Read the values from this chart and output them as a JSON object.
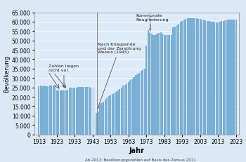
{
  "years": [
    1913,
    1914,
    1915,
    1916,
    1917,
    1918,
    1919,
    1920,
    1921,
    1922,
    1923,
    1924,
    1925,
    1926,
    1927,
    1928,
    1929,
    1930,
    1931,
    1932,
    1933,
    1934,
    1935,
    1936,
    1937,
    1938,
    1939,
    1940,
    1941,
    1942,
    1943,
    1944,
    1945,
    1946,
    1947,
    1948,
    1949,
    1950,
    1951,
    1952,
    1953,
    1954,
    1955,
    1956,
    1957,
    1958,
    1959,
    1960,
    1961,
    1962,
    1963,
    1964,
    1965,
    1966,
    1967,
    1968,
    1969,
    1970,
    1971,
    1972,
    1973,
    1974,
    1975,
    1976,
    1977,
    1978,
    1979,
    1980,
    1981,
    1982,
    1983,
    1984,
    1985,
    1986,
    1987,
    1988,
    1989,
    1990,
    1991,
    1992,
    1993,
    1994,
    1995,
    1996,
    1997,
    1998,
    1999,
    2000,
    2001,
    2002,
    2003,
    2004,
    2005,
    2006,
    2007,
    2008,
    2009,
    2010,
    2011,
    2012,
    2013,
    2014,
    2015,
    2016,
    2017,
    2018,
    2019,
    2020,
    2021,
    2022,
    2023
  ],
  "population": [
    25798,
    25900,
    25700,
    25800,
    25700,
    25500,
    25900,
    26000,
    26100,
    26200,
    23200,
    23300,
    23500,
    23400,
    23400,
    23500,
    23600,
    24800,
    24900,
    24900,
    24900,
    25000,
    25100,
    25100,
    25200,
    25300,
    25400,
    25300,
    25100,
    24900,
    24800,
    24900,
    11500,
    12000,
    15800,
    16500,
    17500,
    18500,
    19500,
    20500,
    21000,
    21500,
    22000,
    22800,
    23500,
    24200,
    25000,
    25800,
    26500,
    27200,
    28000,
    28800,
    29500,
    30500,
    31500,
    32000,
    32800,
    33800,
    34500,
    35000,
    47200,
    55500,
    54000,
    53500,
    53000,
    53000,
    53500,
    54000,
    54200,
    53800,
    53000,
    53000,
    52800,
    53000,
    53000,
    57000,
    57500,
    58000,
    59000,
    60000,
    60500,
    61000,
    61500,
    62000,
    62000,
    62000,
    62000,
    62000,
    61800,
    61600,
    61500,
    61200,
    61000,
    60800,
    60500,
    60200,
    60000,
    60000,
    59800,
    59700,
    59600,
    59800,
    60200,
    60500,
    60800,
    61000,
    61100,
    61200,
    61100,
    61200,
    61277
  ],
  "ylabel": "Bevölkerung",
  "xlabel": "Jahr",
  "bar_color": "#7BAFD4",
  "bar_color_gap": "#c8dff0",
  "background_color": "#dce9f5",
  "plot_bg_color": "#ddeaf7",
  "ylim": [
    0,
    65000
  ],
  "yticks": [
    0,
    5000,
    10000,
    15000,
    20000,
    25000,
    30000,
    35000,
    40000,
    45000,
    50000,
    55000,
    60000,
    65000
  ],
  "xticks": [
    1913,
    1923,
    1933,
    1943,
    1953,
    1963,
    1973,
    1983,
    1993,
    2003,
    2013,
    2023
  ],
  "footer_text": "Ab 2011: Bevölkerungszahlen auf Basis des Zensus 2011"
}
